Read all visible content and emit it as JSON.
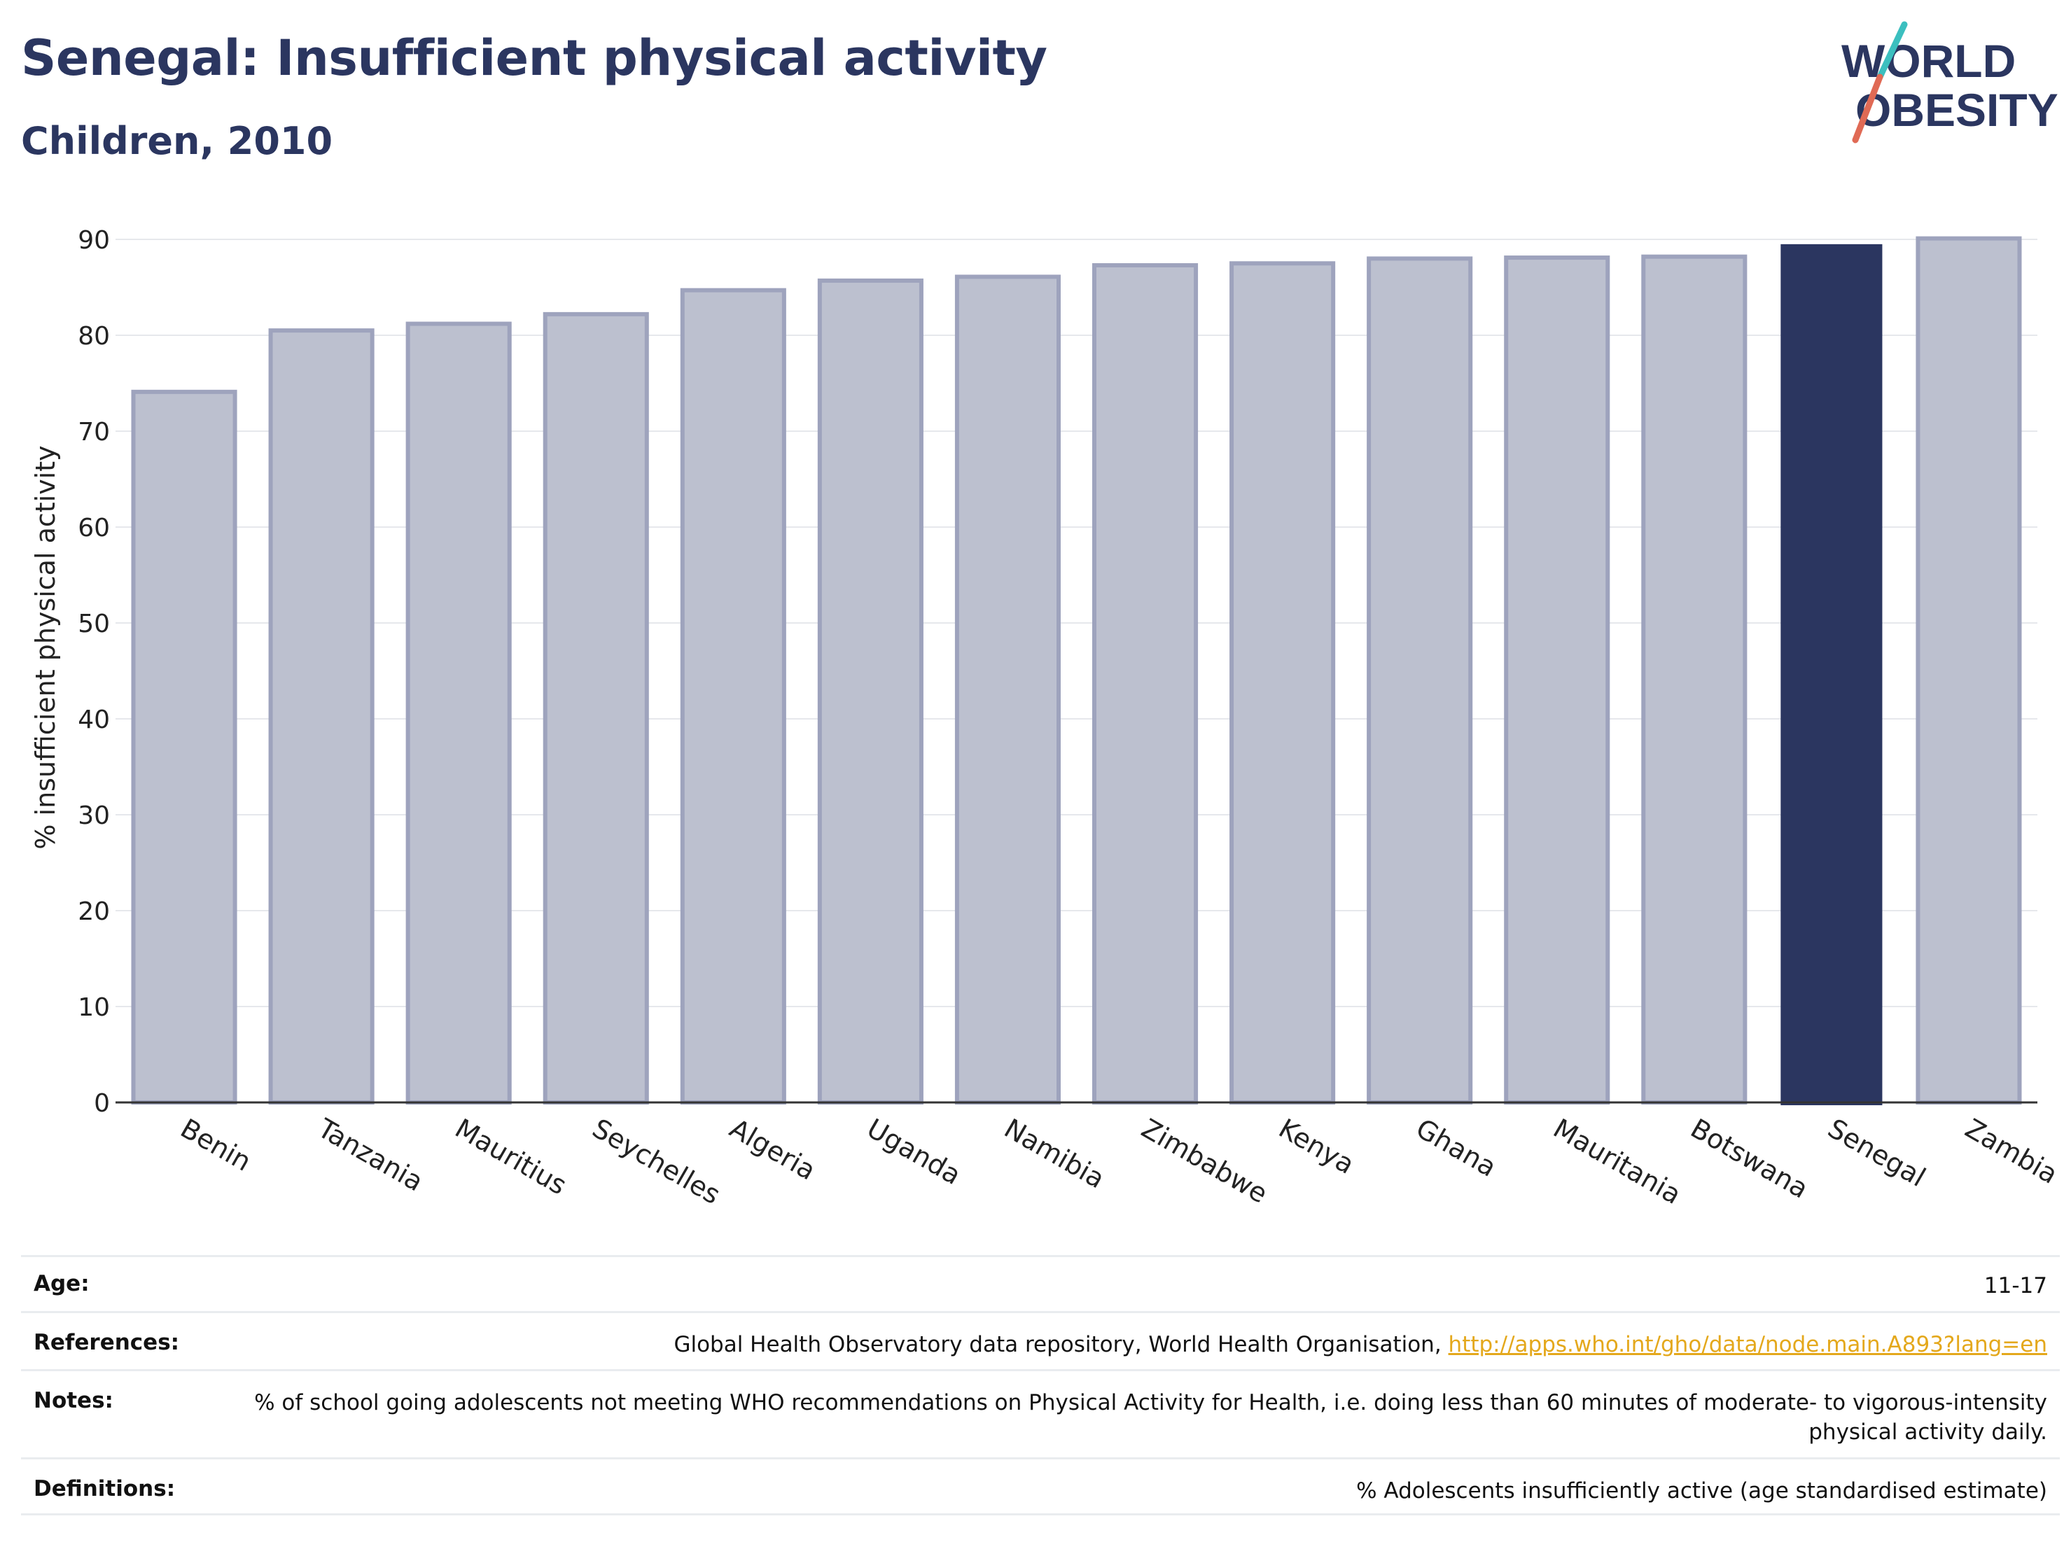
{
  "header": {
    "title": "Senegal: Insufficient physical activity",
    "subtitle": "Children, 2010"
  },
  "logo": {
    "line1": "WORLD",
    "line2": "OBESITY"
  },
  "colors": {
    "highlight_bar": "#2b3660",
    "other_bar_fill": "#bcc0cf",
    "other_bar_stroke": "#9ea3bd",
    "title": "#2b3660",
    "link": "#e4a81c"
  },
  "chart_data": {
    "type": "bar",
    "title": "Senegal: Insufficient physical activity",
    "subtitle": "Children, 2010",
    "ylabel": "% insufficient physical activity",
    "xlabel": "",
    "ylim": [
      0,
      90
    ],
    "yticks": [
      0,
      10,
      20,
      30,
      40,
      50,
      60,
      70,
      80,
      90
    ],
    "grid": true,
    "highlight": "Senegal",
    "categories": [
      "Benin",
      "Tanzania",
      "Mauritius",
      "Seychelles",
      "Algeria",
      "Uganda",
      "Namibia",
      "Zimbabwe",
      "Kenya",
      "Ghana",
      "Mauritania",
      "Botswana",
      "Senegal",
      "Zambia"
    ],
    "values": [
      74.1,
      80.5,
      81.2,
      82.2,
      84.7,
      85.7,
      86.1,
      87.3,
      87.5,
      88.0,
      88.1,
      88.2,
      89.5,
      90.1
    ]
  },
  "info": {
    "age_label": "Age:",
    "age_value": "11-17",
    "references_label": "References:",
    "references_text": "Global Health Observatory data repository, World Health Organisation, ",
    "references_link": "http://apps.who.int/gho/data/node.main.A893?lang=en",
    "notes_label": "Notes:",
    "notes_value": "% of school going adolescents not meeting WHO recommendations on Physical Activity for Health, i.e. doing less than 60 minutes of moderate- to vigorous-intensity physical activity daily.",
    "definitions_label": "Definitions:",
    "definitions_value": "% Adolescents insufficiently active (age standardised estimate)"
  }
}
